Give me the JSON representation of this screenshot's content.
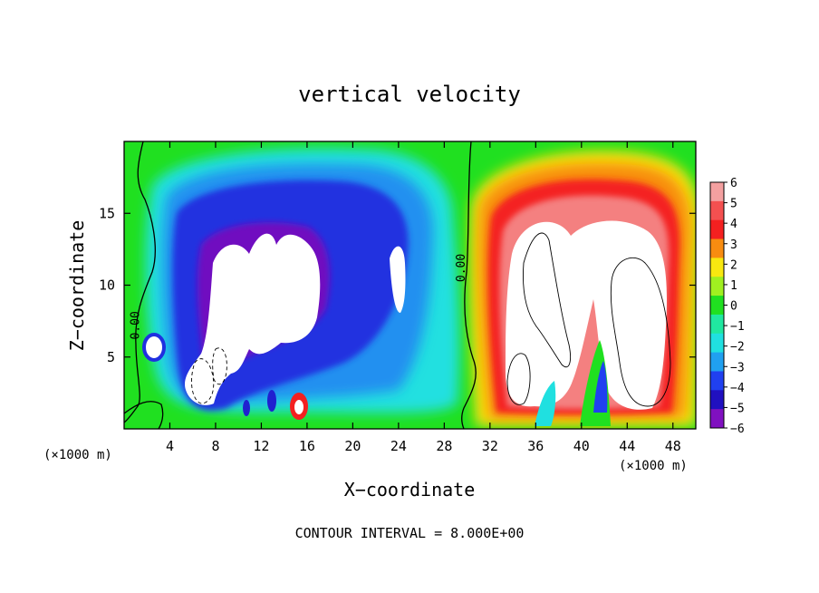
{
  "chart_data": {
    "type": "heatmap",
    "title": "vertical velocity",
    "xlabel": "X−coordinate",
    "ylabel": "Z−coordinate",
    "x_unit_left": "(×1000 m)",
    "x_unit_right": "(×1000 m)",
    "footer": "CONTOUR INTERVAL = 8.000E+00",
    "xlim": [
      0,
      50
    ],
    "ylim": [
      0,
      20
    ],
    "x_ticks": [
      4,
      8,
      12,
      16,
      20,
      24,
      28,
      32,
      36,
      40,
      44,
      48
    ],
    "y_ticks": [
      5,
      10,
      15
    ],
    "colorbar": {
      "min": -6,
      "max": 6,
      "labels": [
        "6",
        "5",
        "4",
        "3",
        "2",
        "1",
        "0",
        "−1",
        "−2",
        "−3",
        "−4",
        "−5",
        "−6"
      ],
      "values": [
        6,
        5,
        4,
        3,
        2,
        1,
        0,
        -1,
        -2,
        -3,
        -4,
        -5,
        -6
      ],
      "colors": [
        "#f4a0a0",
        "#f45050",
        "#f42020",
        "#f88c10",
        "#f8e810",
        "#a0f020",
        "#20e020",
        "#20e8a0",
        "#20e0e0",
        "#20a0f0",
        "#2040f0",
        "#2010c0",
        "#8010c0"
      ]
    },
    "contour_labels": [
      {
        "text": "0.00",
        "x": 1.3,
        "y": 7.2
      },
      {
        "text": "0.00",
        "x": 29.8,
        "y": 11.2
      }
    ],
    "features": [
      {
        "kind": "downdraft",
        "x_range": [
          3,
          30
        ],
        "z_range": [
          0,
          18
        ],
        "peak": -6
      },
      {
        "kind": "updraft",
        "x_range": [
          31,
          50
        ],
        "z_range": [
          0,
          18
        ],
        "peak": 6
      }
    ]
  }
}
